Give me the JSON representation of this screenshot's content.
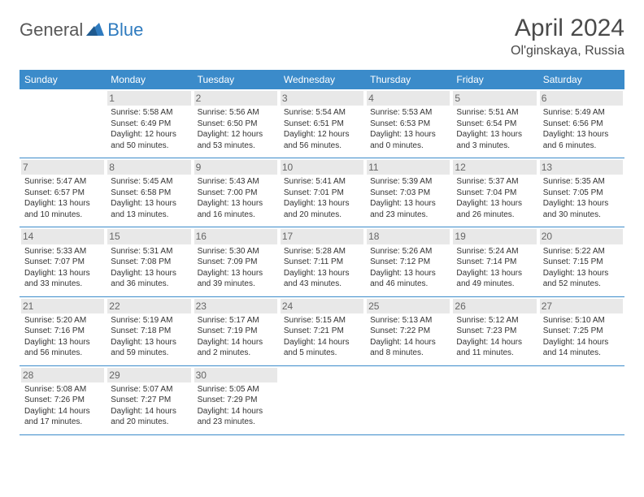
{
  "logo": {
    "text1": "General",
    "text2": "Blue"
  },
  "title": "April 2024",
  "location": "Ol'ginskaya, Russia",
  "style": {
    "header_bg": "#3b8bca",
    "header_fg": "#ffffff",
    "border_color": "#3b8bca",
    "shade_bg": "#e8e8e8",
    "title_fontsize": 30,
    "location_fontsize": 16,
    "dayhdr_fontsize": 12,
    "cell_fontsize": 10,
    "daynum_fontsize": 12
  },
  "weekdays": [
    "Sunday",
    "Monday",
    "Tuesday",
    "Wednesday",
    "Thursday",
    "Friday",
    "Saturday"
  ],
  "weeks": [
    [
      null,
      {
        "n": "1",
        "sr": "5:58 AM",
        "ss": "6:49 PM",
        "dl1": "12 hours",
        "dl2": "and 50 minutes."
      },
      {
        "n": "2",
        "sr": "5:56 AM",
        "ss": "6:50 PM",
        "dl1": "12 hours",
        "dl2": "and 53 minutes."
      },
      {
        "n": "3",
        "sr": "5:54 AM",
        "ss": "6:51 PM",
        "dl1": "12 hours",
        "dl2": "and 56 minutes."
      },
      {
        "n": "4",
        "sr": "5:53 AM",
        "ss": "6:53 PM",
        "dl1": "13 hours",
        "dl2": "and 0 minutes."
      },
      {
        "n": "5",
        "sr": "5:51 AM",
        "ss": "6:54 PM",
        "dl1": "13 hours",
        "dl2": "and 3 minutes."
      },
      {
        "n": "6",
        "sr": "5:49 AM",
        "ss": "6:56 PM",
        "dl1": "13 hours",
        "dl2": "and 6 minutes."
      }
    ],
    [
      {
        "n": "7",
        "sr": "5:47 AM",
        "ss": "6:57 PM",
        "dl1": "13 hours",
        "dl2": "and 10 minutes."
      },
      {
        "n": "8",
        "sr": "5:45 AM",
        "ss": "6:58 PM",
        "dl1": "13 hours",
        "dl2": "and 13 minutes."
      },
      {
        "n": "9",
        "sr": "5:43 AM",
        "ss": "7:00 PM",
        "dl1": "13 hours",
        "dl2": "and 16 minutes."
      },
      {
        "n": "10",
        "sr": "5:41 AM",
        "ss": "7:01 PM",
        "dl1": "13 hours",
        "dl2": "and 20 minutes."
      },
      {
        "n": "11",
        "sr": "5:39 AM",
        "ss": "7:03 PM",
        "dl1": "13 hours",
        "dl2": "and 23 minutes."
      },
      {
        "n": "12",
        "sr": "5:37 AM",
        "ss": "7:04 PM",
        "dl1": "13 hours",
        "dl2": "and 26 minutes."
      },
      {
        "n": "13",
        "sr": "5:35 AM",
        "ss": "7:05 PM",
        "dl1": "13 hours",
        "dl2": "and 30 minutes."
      }
    ],
    [
      {
        "n": "14",
        "sr": "5:33 AM",
        "ss": "7:07 PM",
        "dl1": "13 hours",
        "dl2": "and 33 minutes."
      },
      {
        "n": "15",
        "sr": "5:31 AM",
        "ss": "7:08 PM",
        "dl1": "13 hours",
        "dl2": "and 36 minutes."
      },
      {
        "n": "16",
        "sr": "5:30 AM",
        "ss": "7:09 PM",
        "dl1": "13 hours",
        "dl2": "and 39 minutes."
      },
      {
        "n": "17",
        "sr": "5:28 AM",
        "ss": "7:11 PM",
        "dl1": "13 hours",
        "dl2": "and 43 minutes."
      },
      {
        "n": "18",
        "sr": "5:26 AM",
        "ss": "7:12 PM",
        "dl1": "13 hours",
        "dl2": "and 46 minutes."
      },
      {
        "n": "19",
        "sr": "5:24 AM",
        "ss": "7:14 PM",
        "dl1": "13 hours",
        "dl2": "and 49 minutes."
      },
      {
        "n": "20",
        "sr": "5:22 AM",
        "ss": "7:15 PM",
        "dl1": "13 hours",
        "dl2": "and 52 minutes."
      }
    ],
    [
      {
        "n": "21",
        "sr": "5:20 AM",
        "ss": "7:16 PM",
        "dl1": "13 hours",
        "dl2": "and 56 minutes."
      },
      {
        "n": "22",
        "sr": "5:19 AM",
        "ss": "7:18 PM",
        "dl1": "13 hours",
        "dl2": "and 59 minutes."
      },
      {
        "n": "23",
        "sr": "5:17 AM",
        "ss": "7:19 PM",
        "dl1": "14 hours",
        "dl2": "and 2 minutes."
      },
      {
        "n": "24",
        "sr": "5:15 AM",
        "ss": "7:21 PM",
        "dl1": "14 hours",
        "dl2": "and 5 minutes."
      },
      {
        "n": "25",
        "sr": "5:13 AM",
        "ss": "7:22 PM",
        "dl1": "14 hours",
        "dl2": "and 8 minutes."
      },
      {
        "n": "26",
        "sr": "5:12 AM",
        "ss": "7:23 PM",
        "dl1": "14 hours",
        "dl2": "and 11 minutes."
      },
      {
        "n": "27",
        "sr": "5:10 AM",
        "ss": "7:25 PM",
        "dl1": "14 hours",
        "dl2": "and 14 minutes."
      }
    ],
    [
      {
        "n": "28",
        "sr": "5:08 AM",
        "ss": "7:26 PM",
        "dl1": "14 hours",
        "dl2": "and 17 minutes."
      },
      {
        "n": "29",
        "sr": "5:07 AM",
        "ss": "7:27 PM",
        "dl1": "14 hours",
        "dl2": "and 20 minutes."
      },
      {
        "n": "30",
        "sr": "5:05 AM",
        "ss": "7:29 PM",
        "dl1": "14 hours",
        "dl2": "and 23 minutes."
      },
      null,
      null,
      null,
      null
    ]
  ],
  "labels": {
    "sunrise": "Sunrise:",
    "sunset": "Sunset:",
    "daylight": "Daylight:"
  }
}
